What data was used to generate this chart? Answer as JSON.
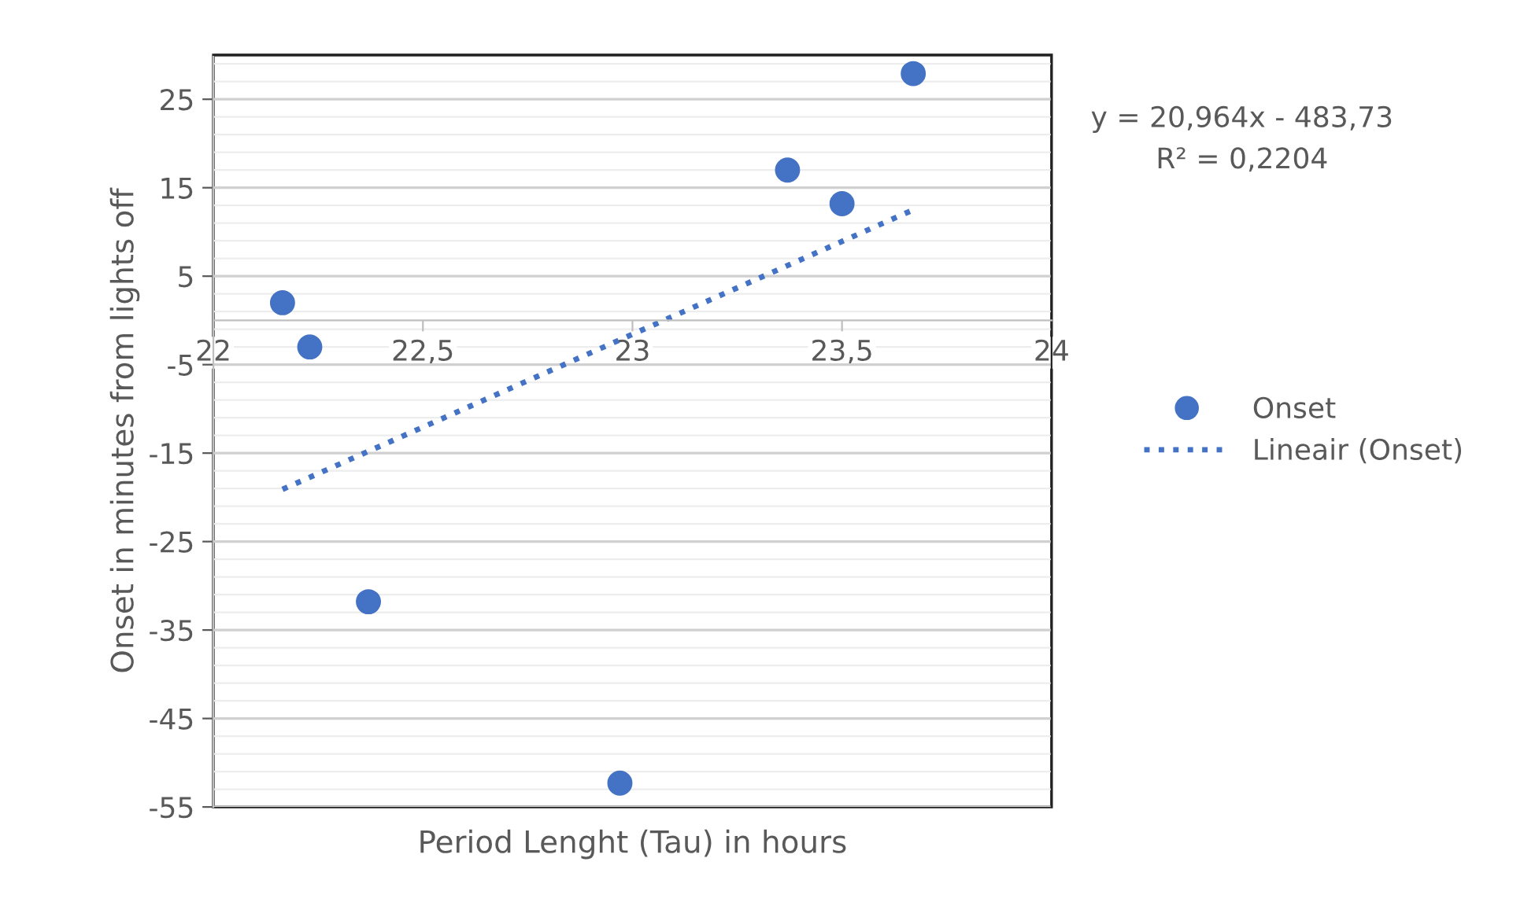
{
  "chart_data": {
    "type": "scatter",
    "xlabel": "Period Lenght (Tau) in hours",
    "ylabel": "Onset in minutes from lights off",
    "annotations": [
      "y = 20,964x - 483,73",
      "R² = 0,2204"
    ],
    "series": [
      {
        "name": "Onset",
        "color": "#4472c4",
        "marker": "circle",
        "x": [
          22.165,
          22.23,
          22.37,
          22.97,
          23.37,
          23.5,
          23.67
        ],
        "values": [
          2.0,
          -3.0,
          -31.8,
          -52.3,
          17.0,
          13.2,
          27.9
        ]
      },
      {
        "name": "Lineair (Onset)",
        "type": "line",
        "color": "#4472c4",
        "line_style": "dotted",
        "marker": "none",
        "x": [
          22.165,
          23.67
        ],
        "values": [
          -19.1,
          12.5
        ]
      }
    ],
    "xlim": [
      22,
      24
    ],
    "xticks": [
      22,
      {
        "value": 22.5,
        "label": "22,5"
      },
      23,
      {
        "value": 23.5,
        "label": "23,5"
      },
      24
    ],
    "ylim": [
      -55,
      30
    ],
    "yticks": [
      -55,
      -45,
      -35,
      -25,
      -15,
      -5,
      5,
      15,
      25
    ],
    "grid": "y",
    "legend": "right"
  }
}
